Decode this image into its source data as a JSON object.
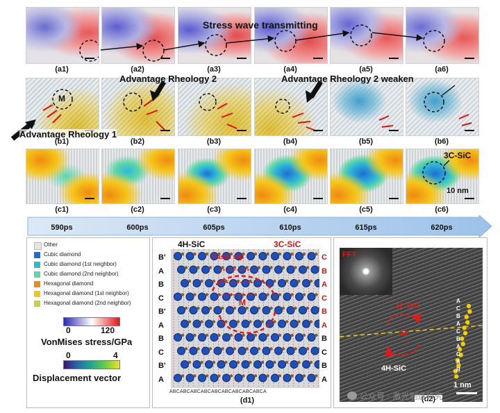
{
  "row_a": {
    "annotation": "Stress wave transmitting",
    "labels": [
      "(a1)",
      "(a2)",
      "(a3)",
      "(a4)",
      "(a5)",
      "(a6)"
    ]
  },
  "row_b": {
    "labels": [
      "(b1)",
      "(b2)",
      "(b3)",
      "(b4)",
      "(b5)",
      "(b6)"
    ],
    "annot_rheology1": "Advantage Rheology 1",
    "annot_rheology2": "Advantage Rheology 2",
    "annot_rheology2_weaken": "Advantage Rheology 2 weaken",
    "annot_M": "M"
  },
  "row_c": {
    "labels": [
      "(c1)",
      "(c2)",
      "(c3)",
      "(c4)",
      "(c5)",
      "(c6)"
    ],
    "annot_3c": "3C-SiC",
    "scale": "10 nm"
  },
  "timeline": [
    "590ps",
    "600ps",
    "605ps",
    "610ps",
    "615ps",
    "620ps"
  ],
  "legend": {
    "items": [
      {
        "label": "Other",
        "color": "#e6e6e6"
      },
      {
        "label": "Cubic diamond",
        "color": "#1e6fd0"
      },
      {
        "label": "Cubic diamond (1st neighbor)",
        "color": "#2fb8d8"
      },
      {
        "label": "Cubic diamond (2nd neighbor)",
        "color": "#5dd6a8"
      },
      {
        "label": "Hexagonal diamond",
        "color": "#f08a12"
      },
      {
        "label": "Hexagonal diamond (1st neighbor)",
        "color": "#f5c518"
      },
      {
        "label": "Hexagonal diamond (2nd neighbor)",
        "color": "#c8d044"
      }
    ],
    "stress_min": "0",
    "stress_max": "120",
    "stress_title": "VonMises stress/GPa",
    "disp_min": "0",
    "disp_max": "4",
    "disp_title": "Displacement vector"
  },
  "d1": {
    "title_left": "4H-SiC",
    "title_right": "3C-SiC",
    "plastic_slip": "Plastic slip",
    "M": "M",
    "left_stack": [
      "B'",
      "A",
      "B",
      "C",
      "B'",
      "A",
      "B",
      "C",
      "B'",
      "A"
    ],
    "right_stack": [
      "C",
      "B",
      "A",
      "C",
      "B",
      "A",
      "B",
      "C",
      "B",
      "A"
    ],
    "bottom": "ABCABCABCABCABCABCABCABCABCA",
    "label": "(d1)"
  },
  "d2": {
    "fft": "FFT",
    "label_3c": "3C-SiC",
    "label_4h": "4H-SiC",
    "M": "M",
    "stack": "ACBACBACAB",
    "scale": "1 nm",
    "label": "(d2)"
  },
  "watermark": "公众号 · 激光制造研究"
}
